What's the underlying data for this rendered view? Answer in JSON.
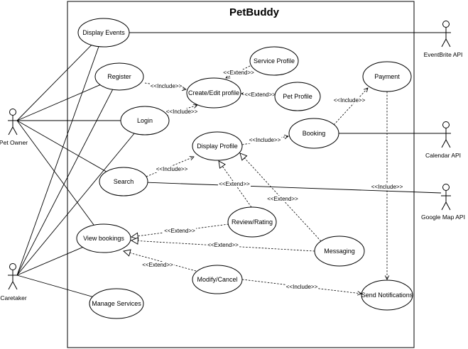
{
  "title": "PetBuddy",
  "actors": [
    {
      "id": "pet-owner",
      "label": "Pet Owner"
    },
    {
      "id": "caretaker",
      "label": "Caretaker"
    },
    {
      "id": "eventbrite-api",
      "label": "EventBrite API"
    },
    {
      "id": "calendar-api",
      "label": "Calendar API"
    },
    {
      "id": "google-map-api",
      "label": "Google Map API"
    }
  ],
  "use_cases": [
    {
      "id": "display-events",
      "label": "Display Events"
    },
    {
      "id": "register",
      "label": "Register"
    },
    {
      "id": "login",
      "label": "Login"
    },
    {
      "id": "search",
      "label": "Search"
    },
    {
      "id": "view-bookings",
      "label": "View bookings"
    },
    {
      "id": "manage-services",
      "label": "Manage Services"
    },
    {
      "id": "service-profile",
      "label": "Service Profile"
    },
    {
      "id": "create-edit-profile",
      "label": "Create/Edit profile"
    },
    {
      "id": "pet-profile",
      "label": "Pet Profile"
    },
    {
      "id": "display-profile",
      "label": "Display Profile"
    },
    {
      "id": "booking",
      "label": "Booking"
    },
    {
      "id": "payment",
      "label": "Payment"
    },
    {
      "id": "review-rating",
      "label": "Review/Rating"
    },
    {
      "id": "messaging",
      "label": "Messaging"
    },
    {
      "id": "modify-cancel",
      "label": "Modify/Cancel"
    },
    {
      "id": "send-notifications",
      "label": "Send Notifications"
    }
  ],
  "associations": [
    {
      "actor": "pet-owner",
      "use_case": "display-events"
    },
    {
      "actor": "pet-owner",
      "use_case": "register"
    },
    {
      "actor": "pet-owner",
      "use_case": "login"
    },
    {
      "actor": "pet-owner",
      "use_case": "search"
    },
    {
      "actor": "pet-owner",
      "use_case": "view-bookings"
    },
    {
      "actor": "caretaker",
      "use_case": "display-events"
    },
    {
      "actor": "caretaker",
      "use_case": "register"
    },
    {
      "actor": "caretaker",
      "use_case": "login"
    },
    {
      "actor": "caretaker",
      "use_case": "view-bookings"
    },
    {
      "actor": "caretaker",
      "use_case": "manage-services"
    },
    {
      "actor": "eventbrite-api",
      "use_case": "display-events"
    },
    {
      "actor": "calendar-api",
      "use_case": "booking"
    },
    {
      "actor": "google-map-api",
      "use_case": "search"
    }
  ],
  "dependencies": [
    {
      "from": "register",
      "to": "create-edit-profile",
      "label": "<<Include>>"
    },
    {
      "from": "service-profile",
      "to": "create-edit-profile",
      "label": "<<Extend>>"
    },
    {
      "from": "pet-profile",
      "to": "create-edit-profile",
      "label": "<<Extend>>"
    },
    {
      "from": "login",
      "to": "create-edit-profile",
      "label": "<<Include>>"
    },
    {
      "from": "display-profile",
      "to": "booking",
      "label": "<<Include>>"
    },
    {
      "from": "booking",
      "to": "payment",
      "label": "<<Include>>"
    },
    {
      "from": "search",
      "to": "display-profile",
      "label": "<<Include>>"
    },
    {
      "from": "review-rating",
      "to": "display-profile",
      "label": "<<Extend>>"
    },
    {
      "from": "messaging",
      "to": "display-profile",
      "label": "<<Extend>>"
    },
    {
      "from": "payment",
      "to": "send-notifications",
      "label": "<<Include>>"
    },
    {
      "from": "review-rating",
      "to": "view-bookings",
      "label": "<<Extend>>"
    },
    {
      "from": "messaging",
      "to": "view-bookings",
      "label": "<<Extend>>"
    },
    {
      "from": "modify-cancel",
      "to": "view-bookings",
      "label": "<<Extend>>"
    },
    {
      "from": "modify-cancel",
      "to": "send-notifications",
      "label": "<<Include>>"
    }
  ]
}
